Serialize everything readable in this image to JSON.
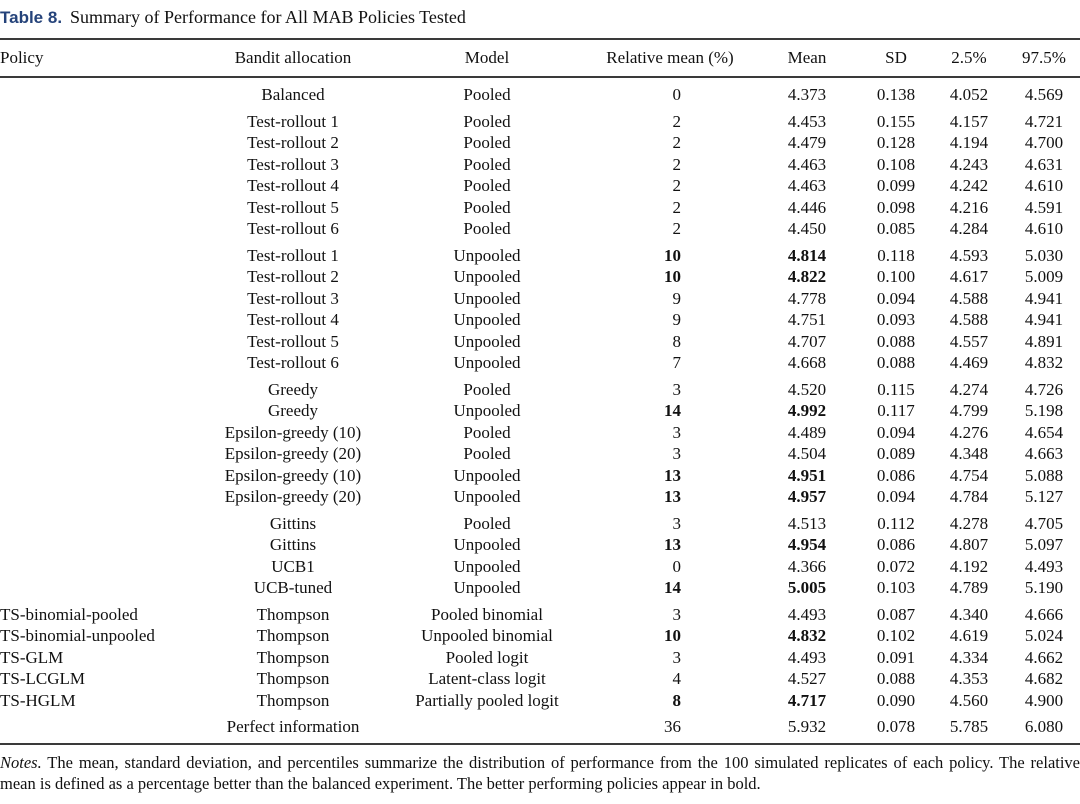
{
  "colors": {
    "title_accent": "#25437a",
    "rule": "#3a3a3a"
  },
  "title": {
    "label": "Table 8.",
    "text": "Summary of Performance for All MAB Policies Tested"
  },
  "table": {
    "columns": [
      "Policy",
      "Bandit allocation",
      "Model",
      "Relative mean (%)",
      "Mean",
      "SD",
      "2.5%",
      "97.5%"
    ],
    "groups": [
      {
        "rows": [
          {
            "policy": "",
            "allocation": "Balanced",
            "model": "Pooled",
            "rel": "0",
            "mean": "4.373",
            "sd": "0.138",
            "lo": "4.052",
            "hi": "4.569",
            "bold": false
          }
        ]
      },
      {
        "rows": [
          {
            "policy": "",
            "allocation": "Test-rollout 1",
            "model": "Pooled",
            "rel": "2",
            "mean": "4.453",
            "sd": "0.155",
            "lo": "4.157",
            "hi": "4.721",
            "bold": false
          },
          {
            "policy": "",
            "allocation": "Test-rollout 2",
            "model": "Pooled",
            "rel": "2",
            "mean": "4.479",
            "sd": "0.128",
            "lo": "4.194",
            "hi": "4.700",
            "bold": false
          },
          {
            "policy": "",
            "allocation": "Test-rollout 3",
            "model": "Pooled",
            "rel": "2",
            "mean": "4.463",
            "sd": "0.108",
            "lo": "4.243",
            "hi": "4.631",
            "bold": false
          },
          {
            "policy": "",
            "allocation": "Test-rollout 4",
            "model": "Pooled",
            "rel": "2",
            "mean": "4.463",
            "sd": "0.099",
            "lo": "4.242",
            "hi": "4.610",
            "bold": false
          },
          {
            "policy": "",
            "allocation": "Test-rollout 5",
            "model": "Pooled",
            "rel": "2",
            "mean": "4.446",
            "sd": "0.098",
            "lo": "4.216",
            "hi": "4.591",
            "bold": false
          },
          {
            "policy": "",
            "allocation": "Test-rollout 6",
            "model": "Pooled",
            "rel": "2",
            "mean": "4.450",
            "sd": "0.085",
            "lo": "4.284",
            "hi": "4.610",
            "bold": false
          }
        ]
      },
      {
        "rows": [
          {
            "policy": "",
            "allocation": "Test-rollout 1",
            "model": "Unpooled",
            "rel": "10",
            "mean": "4.814",
            "sd": "0.118",
            "lo": "4.593",
            "hi": "5.030",
            "bold": true
          },
          {
            "policy": "",
            "allocation": "Test-rollout 2",
            "model": "Unpooled",
            "rel": "10",
            "mean": "4.822",
            "sd": "0.100",
            "lo": "4.617",
            "hi": "5.009",
            "bold": true
          },
          {
            "policy": "",
            "allocation": "Test-rollout 3",
            "model": "Unpooled",
            "rel": "9",
            "mean": "4.778",
            "sd": "0.094",
            "lo": "4.588",
            "hi": "4.941",
            "bold": false
          },
          {
            "policy": "",
            "allocation": "Test-rollout 4",
            "model": "Unpooled",
            "rel": "9",
            "mean": "4.751",
            "sd": "0.093",
            "lo": "4.588",
            "hi": "4.941",
            "bold": false
          },
          {
            "policy": "",
            "allocation": "Test-rollout 5",
            "model": "Unpooled",
            "rel": "8",
            "mean": "4.707",
            "sd": "0.088",
            "lo": "4.557",
            "hi": "4.891",
            "bold": false
          },
          {
            "policy": "",
            "allocation": "Test-rollout 6",
            "model": "Unpooled",
            "rel": "7",
            "mean": "4.668",
            "sd": "0.088",
            "lo": "4.469",
            "hi": "4.832",
            "bold": false
          }
        ]
      },
      {
        "rows": [
          {
            "policy": "",
            "allocation": "Greedy",
            "model": "Pooled",
            "rel": "3",
            "mean": "4.520",
            "sd": "0.115",
            "lo": "4.274",
            "hi": "4.726",
            "bold": false
          },
          {
            "policy": "",
            "allocation": "Greedy",
            "model": "Unpooled",
            "rel": "14",
            "mean": "4.992",
            "sd": "0.117",
            "lo": "4.799",
            "hi": "5.198",
            "bold": true
          },
          {
            "policy": "",
            "allocation": "Epsilon-greedy (10)",
            "model": "Pooled",
            "rel": "3",
            "mean": "4.489",
            "sd": "0.094",
            "lo": "4.276",
            "hi": "4.654",
            "bold": false
          },
          {
            "policy": "",
            "allocation": "Epsilon-greedy (20)",
            "model": "Pooled",
            "rel": "3",
            "mean": "4.504",
            "sd": "0.089",
            "lo": "4.348",
            "hi": "4.663",
            "bold": false
          },
          {
            "policy": "",
            "allocation": "Epsilon-greedy (10)",
            "model": "Unpooled",
            "rel": "13",
            "mean": "4.951",
            "sd": "0.086",
            "lo": "4.754",
            "hi": "5.088",
            "bold": true
          },
          {
            "policy": "",
            "allocation": "Epsilon-greedy (20)",
            "model": "Unpooled",
            "rel": "13",
            "mean": "4.957",
            "sd": "0.094",
            "lo": "4.784",
            "hi": "5.127",
            "bold": true
          }
        ]
      },
      {
        "rows": [
          {
            "policy": "",
            "allocation": "Gittins",
            "model": "Pooled",
            "rel": "3",
            "mean": "4.513",
            "sd": "0.112",
            "lo": "4.278",
            "hi": "4.705",
            "bold": false
          },
          {
            "policy": "",
            "allocation": "Gittins",
            "model": "Unpooled",
            "rel": "13",
            "mean": "4.954",
            "sd": "0.086",
            "lo": "4.807",
            "hi": "5.097",
            "bold": true
          },
          {
            "policy": "",
            "allocation": "UCB1",
            "model": "Unpooled",
            "rel": "0",
            "mean": "4.366",
            "sd": "0.072",
            "lo": "4.192",
            "hi": "4.493",
            "bold": false
          },
          {
            "policy": "",
            "allocation": "UCB-tuned",
            "model": "Unpooled",
            "rel": "14",
            "mean": "5.005",
            "sd": "0.103",
            "lo": "4.789",
            "hi": "5.190",
            "bold": true
          }
        ]
      },
      {
        "rows": [
          {
            "policy": "TS-binomial-pooled",
            "allocation": "Thompson",
            "model": "Pooled binomial",
            "rel": "3",
            "mean": "4.493",
            "sd": "0.087",
            "lo": "4.340",
            "hi": "4.666",
            "bold": false
          },
          {
            "policy": "TS-binomial-unpooled",
            "allocation": "Thompson",
            "model": "Unpooled binomial",
            "rel": "10",
            "mean": "4.832",
            "sd": "0.102",
            "lo": "4.619",
            "hi": "5.024",
            "bold": true
          },
          {
            "policy": "TS-GLM",
            "allocation": "Thompson",
            "model": "Pooled logit",
            "rel": "3",
            "mean": "4.493",
            "sd": "0.091",
            "lo": "4.334",
            "hi": "4.662",
            "bold": false
          },
          {
            "policy": "TS-LCGLM",
            "allocation": "Thompson",
            "model": "Latent-class logit",
            "rel": "4",
            "mean": "4.527",
            "sd": "0.088",
            "lo": "4.353",
            "hi": "4.682",
            "bold": false
          },
          {
            "policy": "TS-HGLM",
            "allocation": "Thompson",
            "model": "Partially pooled logit",
            "rel": "8",
            "mean": "4.717",
            "sd": "0.090",
            "lo": "4.560",
            "hi": "4.900",
            "bold": true
          }
        ]
      },
      {
        "rows": [
          {
            "policy": "",
            "allocation": "Perfect information",
            "model": "",
            "rel": "36",
            "mean": "5.932",
            "sd": "0.078",
            "lo": "5.785",
            "hi": "6.080",
            "bold": false
          }
        ]
      }
    ]
  },
  "notes": {
    "label": "Notes.",
    "body": "The mean, standard deviation, and percentiles summarize the distribution of performance from the 100 simulated replicates of each policy. The relative mean is defined as a percentage better than the balanced experiment. The better performing policies appear in bold."
  }
}
